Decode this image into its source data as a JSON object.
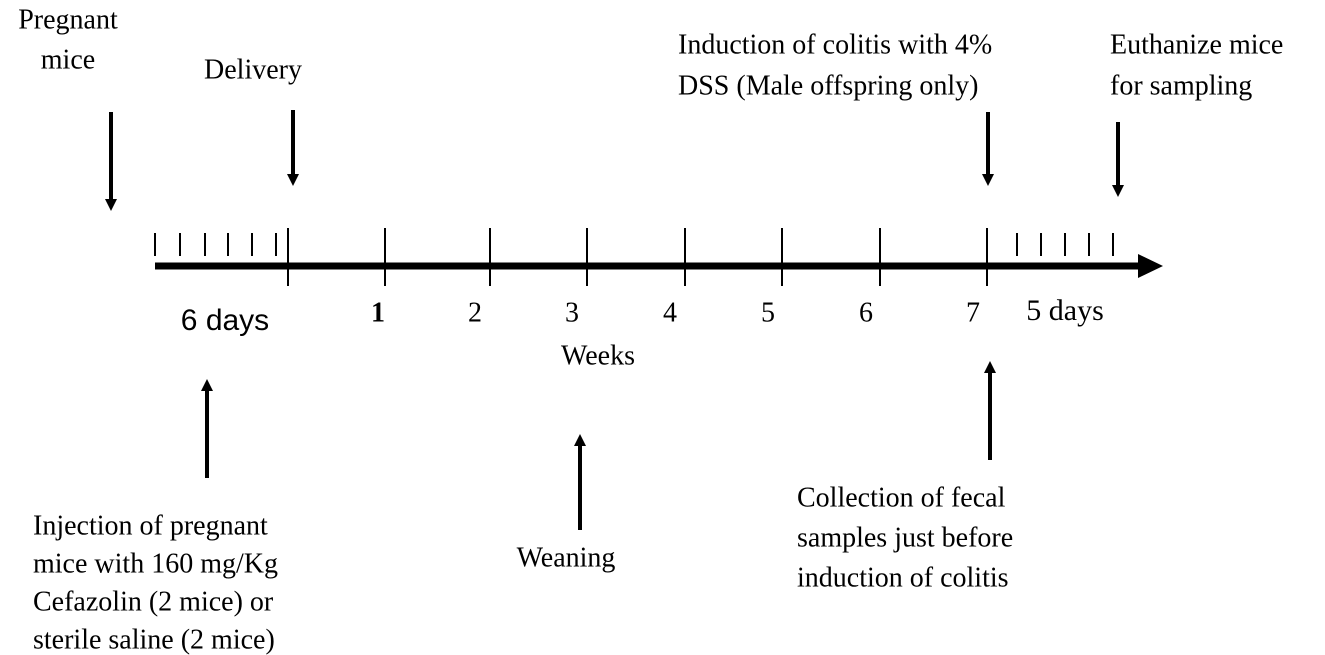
{
  "annotations": [
    {
      "lines": [
        "Pregnant",
        "mice"
      ]
    },
    {
      "lines": [
        "Delivery"
      ]
    },
    {
      "lines": [
        "Induction of colitis with 4%",
        "DSS (Male offspring only)"
      ]
    },
    {
      "lines": [
        "Euthanize mice",
        "for sampling"
      ]
    },
    {
      "lines": [
        "Injection of pregnant",
        "mice with 160 mg/Kg",
        "Cefazolin (2 mice) or",
        "sterile saline (2 mice)"
      ]
    },
    {
      "lines": [
        "Weaning"
      ]
    },
    {
      "lines": [
        "Collection of fecal",
        "samples just before",
        "induction of colitis"
      ]
    }
  ],
  "timeline": {
    "pre_label": "6 days",
    "weeks": [
      "1",
      "2",
      "3",
      "4",
      "5",
      "6",
      "7"
    ],
    "axis_label": "Weeks",
    "post_label": "5 days"
  }
}
